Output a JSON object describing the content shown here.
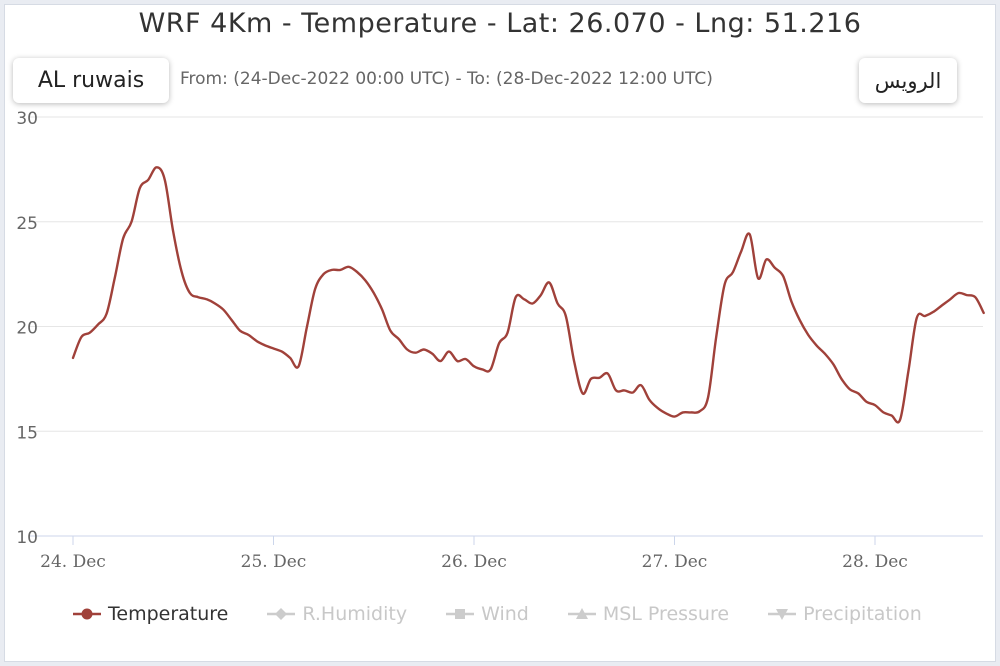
{
  "header": {
    "title": "WRF 4Km - Temperature - Lat: 26.070 - Lng: 51.216",
    "subtitle": "From: (24-Dec-2022 00:00 UTC) - To: (28-Dec-2022 12:00 UTC)",
    "location_en": "AL ruwais",
    "location_ar": "الرويس"
  },
  "chart_data": {
    "type": "line",
    "title": "WRF 4Km - Temperature - Lat: 26.070 - Lng: 51.216",
    "subtitle": "From: (24-Dec-2022 00:00 UTC) - To: (28-Dec-2022 12:00 UTC)",
    "xlabel": "",
    "ylabel": "",
    "x_unit": "days since 24-Dec-2022 00:00 UTC",
    "x_ticks": [
      {
        "label": "24. Dec",
        "x": 0
      },
      {
        "label": "25. Dec",
        "x": 1
      },
      {
        "label": "26. Dec",
        "x": 2
      },
      {
        "label": "27. Dec",
        "x": 3
      },
      {
        "label": "28. Dec",
        "x": 4
      }
    ],
    "xlim": [
      0,
      4.5
    ],
    "y_ticks": [
      10,
      15,
      20,
      25,
      30
    ],
    "ylim": [
      10,
      30
    ],
    "grid": true,
    "legend_position": "bottom-left",
    "series": [
      {
        "name": "Temperature",
        "color": "#a0413a",
        "points": [
          [
            0.0,
            18.5
          ],
          [
            0.042,
            19.5
          ],
          [
            0.083,
            19.7
          ],
          [
            0.125,
            20.1
          ],
          [
            0.167,
            20.6
          ],
          [
            0.208,
            22.3
          ],
          [
            0.25,
            24.2
          ],
          [
            0.292,
            25.0
          ],
          [
            0.333,
            26.6
          ],
          [
            0.375,
            27.0
          ],
          [
            0.417,
            27.6
          ],
          [
            0.458,
            27.0
          ],
          [
            0.5,
            24.5
          ],
          [
            0.542,
            22.6
          ],
          [
            0.583,
            21.6
          ],
          [
            0.625,
            21.4
          ],
          [
            0.667,
            21.3
          ],
          [
            0.708,
            21.1
          ],
          [
            0.75,
            20.8
          ],
          [
            0.792,
            20.3
          ],
          [
            0.833,
            19.8
          ],
          [
            0.875,
            19.6
          ],
          [
            0.917,
            19.3
          ],
          [
            0.958,
            19.1
          ],
          [
            1.0,
            18.95
          ],
          [
            1.042,
            18.8
          ],
          [
            1.083,
            18.5
          ],
          [
            1.125,
            18.1
          ],
          [
            1.167,
            20.0
          ],
          [
            1.208,
            21.8
          ],
          [
            1.25,
            22.5
          ],
          [
            1.292,
            22.7
          ],
          [
            1.333,
            22.7
          ],
          [
            1.375,
            22.85
          ],
          [
            1.417,
            22.6
          ],
          [
            1.458,
            22.2
          ],
          [
            1.5,
            21.6
          ],
          [
            1.542,
            20.8
          ],
          [
            1.583,
            19.8
          ],
          [
            1.625,
            19.4
          ],
          [
            1.667,
            18.9
          ],
          [
            1.708,
            18.75
          ],
          [
            1.75,
            18.9
          ],
          [
            1.792,
            18.7
          ],
          [
            1.833,
            18.35
          ],
          [
            1.875,
            18.8
          ],
          [
            1.917,
            18.35
          ],
          [
            1.958,
            18.45
          ],
          [
            2.0,
            18.1
          ],
          [
            2.042,
            17.95
          ],
          [
            2.083,
            17.95
          ],
          [
            2.125,
            19.2
          ],
          [
            2.167,
            19.7
          ],
          [
            2.208,
            21.4
          ],
          [
            2.25,
            21.3
          ],
          [
            2.292,
            21.1
          ],
          [
            2.333,
            21.5
          ],
          [
            2.375,
            22.1
          ],
          [
            2.417,
            21.1
          ],
          [
            2.458,
            20.5
          ],
          [
            2.5,
            18.3
          ],
          [
            2.542,
            16.8
          ],
          [
            2.583,
            17.5
          ],
          [
            2.625,
            17.55
          ],
          [
            2.667,
            17.75
          ],
          [
            2.708,
            16.95
          ],
          [
            2.75,
            16.95
          ],
          [
            2.792,
            16.85
          ],
          [
            2.833,
            17.2
          ],
          [
            2.875,
            16.5
          ],
          [
            2.917,
            16.1
          ],
          [
            2.958,
            15.85
          ],
          [
            3.0,
            15.7
          ],
          [
            3.042,
            15.9
          ],
          [
            3.083,
            15.9
          ],
          [
            3.125,
            15.95
          ],
          [
            3.167,
            16.6
          ],
          [
            3.208,
            19.5
          ],
          [
            3.25,
            22.0
          ],
          [
            3.292,
            22.6
          ],
          [
            3.333,
            23.6
          ],
          [
            3.375,
            24.4
          ],
          [
            3.417,
            22.3
          ],
          [
            3.458,
            23.2
          ],
          [
            3.5,
            22.8
          ],
          [
            3.542,
            22.4
          ],
          [
            3.583,
            21.2
          ],
          [
            3.625,
            20.3
          ],
          [
            3.667,
            19.6
          ],
          [
            3.708,
            19.1
          ],
          [
            3.75,
            18.7
          ],
          [
            3.792,
            18.2
          ],
          [
            3.833,
            17.5
          ],
          [
            3.875,
            17.0
          ],
          [
            3.917,
            16.8
          ],
          [
            3.958,
            16.4
          ],
          [
            4.0,
            16.25
          ],
          [
            4.042,
            15.9
          ],
          [
            4.083,
            15.75
          ],
          [
            4.125,
            15.55
          ],
          [
            4.167,
            17.9
          ],
          [
            4.208,
            20.4
          ],
          [
            4.25,
            20.5
          ],
          [
            4.292,
            20.7
          ],
          [
            4.333,
            21.0
          ],
          [
            4.375,
            21.3
          ],
          [
            4.417,
            21.6
          ],
          [
            4.458,
            21.5
          ],
          [
            4.5,
            21.4
          ],
          [
            4.542,
            20.65
          ]
        ]
      }
    ],
    "legend": [
      {
        "name": "Temperature",
        "active": true,
        "color": "#a0413a",
        "marker": "circle"
      },
      {
        "name": "R.Humidity",
        "active": false,
        "color": "#cccccc",
        "marker": "diamond"
      },
      {
        "name": "Wind",
        "active": false,
        "color": "#cccccc",
        "marker": "square"
      },
      {
        "name": "MSL Pressure",
        "active": false,
        "color": "#cccccc",
        "marker": "triangle"
      },
      {
        "name": "Precipitation",
        "active": false,
        "color": "#cccccc",
        "marker": "triangle-down"
      }
    ]
  }
}
